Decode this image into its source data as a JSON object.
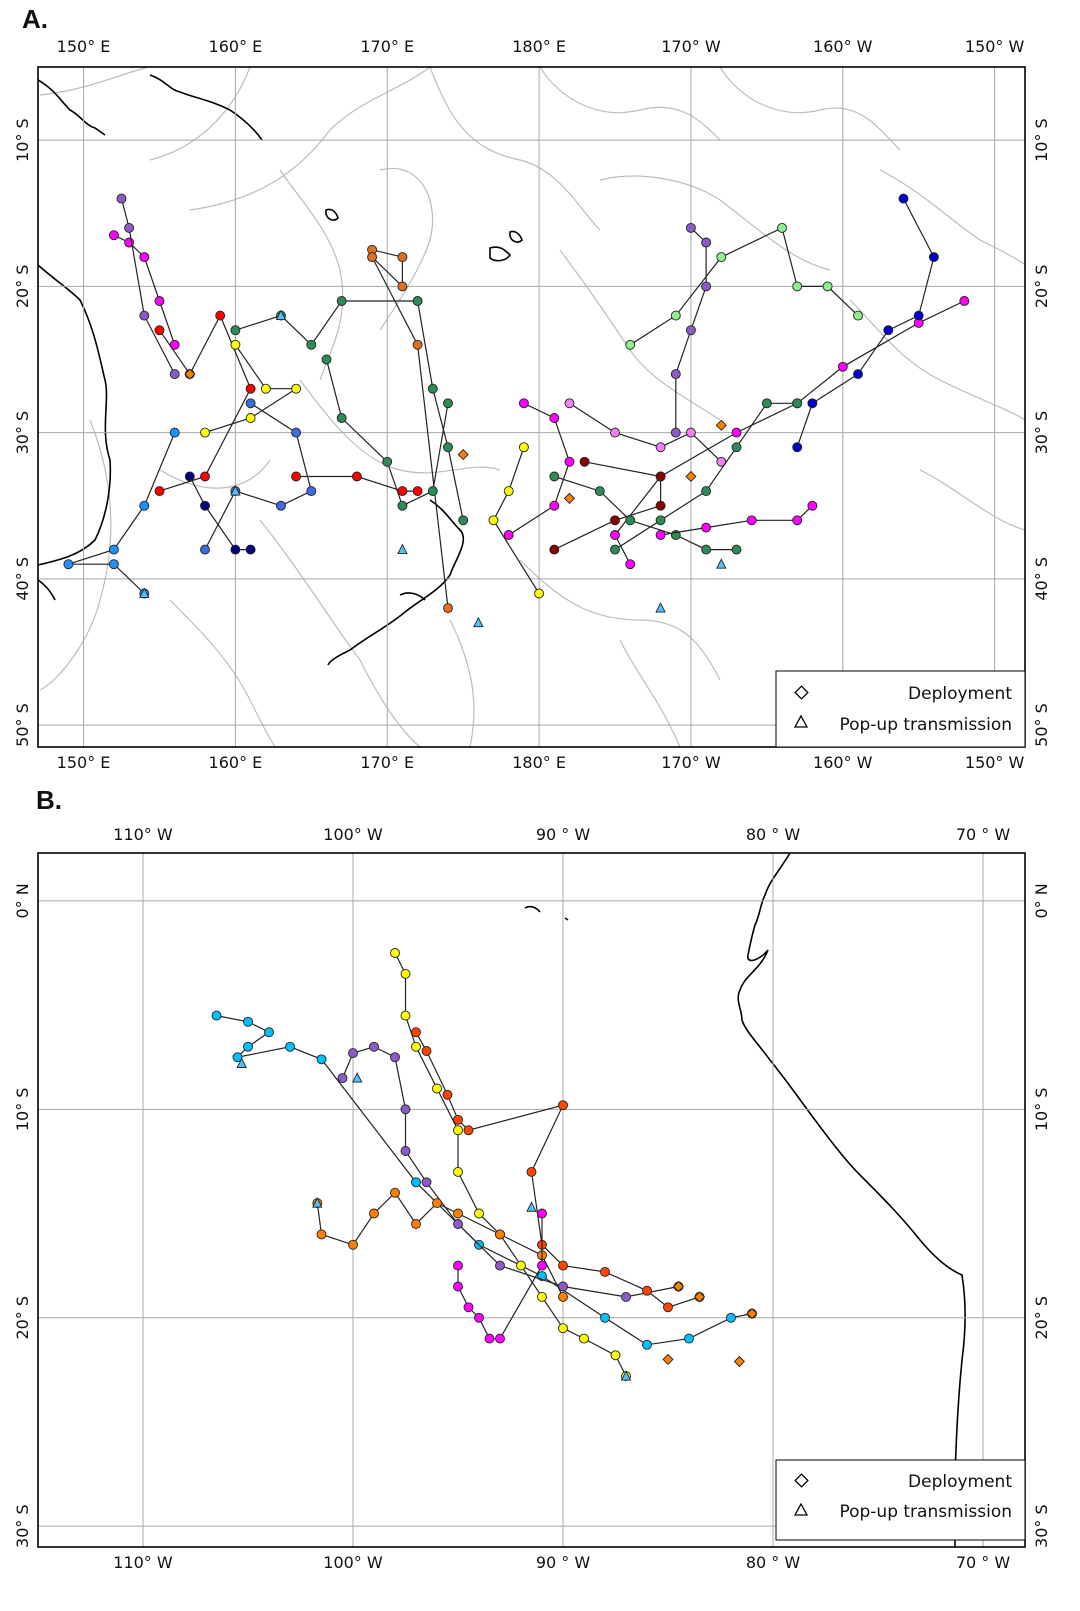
{
  "panels": [
    {
      "id": "A",
      "label": "A.",
      "lon_labels": [
        "150° E",
        "160° E",
        "170° E",
        "180° E",
        "170° W",
        "160° W",
        "150° W"
      ],
      "lon_values": [
        150,
        160,
        170,
        180,
        190,
        200,
        210
      ],
      "lat_labels": [
        "10° S",
        "20° S",
        "30° S",
        "40° S",
        "50° S"
      ],
      "lat_values": [
        -10,
        -20,
        -30,
        -40,
        -50
      ],
      "lon_range": [
        147,
        212
      ],
      "lat_range": [
        -51.5,
        -5
      ],
      "legend": {
        "deployment": "Deployment",
        "popup": "Pop-up transmission"
      },
      "tracks": [
        {
          "color": "#ff00ff",
          "points": [
            [
              152,
              -16.5
            ],
            [
              153,
              -17
            ],
            [
              154,
              -18
            ],
            [
              155,
              -21
            ],
            [
              156,
              -24
            ]
          ]
        },
        {
          "color": "#8b5cc7",
          "points": [
            [
              152.5,
              -14
            ],
            [
              153,
              -16
            ],
            [
              154,
              -22
            ],
            [
              156,
              -26
            ]
          ]
        },
        {
          "color": "#ff0000",
          "points": [
            [
              155,
              -23
            ],
            [
              157,
              -26
            ],
            [
              159,
              -22
            ],
            [
              161,
              -27
            ],
            [
              158,
              -33
            ],
            [
              155,
              -34
            ]
          ]
        },
        {
          "color": "#1e90ff",
          "points": [
            [
              156,
              -30
            ],
            [
              154,
              -35
            ],
            [
              152,
              -38
            ],
            [
              149,
              -39
            ],
            [
              152,
              -39
            ],
            [
              154,
              -41
            ]
          ]
        },
        {
          "color": "#ffff00",
          "points": [
            [
              160,
              -24
            ],
            [
              162,
              -27
            ],
            [
              164,
              -27
            ],
            [
              161,
              -29
            ],
            [
              158,
              -30
            ]
          ]
        },
        {
          "color": "#2e8b57",
          "points": [
            [
              160,
              -23
            ],
            [
              163,
              -22
            ],
            [
              165,
              -24
            ],
            [
              167,
              -21
            ],
            [
              172,
              -21
            ],
            [
              173,
              -27
            ],
            [
              174,
              -31
            ],
            [
              175,
              -36
            ]
          ]
        },
        {
          "color": "#e07020",
          "points": [
            [
              169,
              -17.5
            ],
            [
              171,
              -18
            ],
            [
              171,
              -20
            ],
            [
              169,
              -18
            ],
            [
              172,
              -24
            ],
            [
              174,
              -42
            ]
          ]
        },
        {
          "color": "#2e8b57",
          "points": [
            [
              166,
              -25
            ],
            [
              167,
              -29
            ],
            [
              170,
              -32
            ],
            [
              171,
              -35
            ],
            [
              173,
              -34
            ],
            [
              174,
              -28
            ]
          ]
        },
        {
          "color": "#4169e1",
          "points": [
            [
              161,
              -28
            ],
            [
              164,
              -30
            ],
            [
              165,
              -34
            ],
            [
              163,
              -35
            ],
            [
              160,
              -34
            ],
            [
              158,
              -38
            ]
          ]
        },
        {
          "color": "#ff0000",
          "points": [
            [
              164,
              -33
            ],
            [
              168,
              -33
            ],
            [
              171,
              -34
            ],
            [
              172,
              -34
            ]
          ]
        },
        {
          "color": "#000080",
          "points": [
            [
              157,
              -33
            ],
            [
              158,
              -35
            ],
            [
              160,
              -38
            ],
            [
              161,
              -38
            ]
          ]
        },
        {
          "color": "#ff00ff",
          "points": [
            [
              208,
              -21
            ],
            [
              205,
              -22.5
            ],
            [
              200,
              -25.5
            ],
            [
              197,
              -28
            ],
            [
              193,
              -30
            ],
            [
              188,
              -33
            ],
            [
              185,
              -37
            ],
            [
              186,
              -39
            ]
          ]
        },
        {
          "color": "#0000cd",
          "points": [
            [
              204,
              -14
            ],
            [
              206,
              -18
            ],
            [
              205,
              -22
            ],
            [
              203,
              -23
            ],
            [
              201,
              -26
            ],
            [
              198,
              -28
            ],
            [
              197,
              -31
            ]
          ]
        },
        {
          "color": "#8b0000",
          "points": [
            [
              183,
              -32
            ],
            [
              188,
              -33
            ],
            [
              188,
              -35
            ],
            [
              185,
              -36
            ],
            [
              181,
              -38
            ]
          ]
        },
        {
          "color": "#2e8b57",
          "points": [
            [
              181,
              -33
            ],
            [
              184,
              -34
            ],
            [
              186,
              -36
            ],
            [
              189,
              -37
            ],
            [
              191,
              -38
            ],
            [
              193,
              -38
            ]
          ]
        },
        {
          "color": "#90ee90",
          "points": [
            [
              186,
              -24
            ],
            [
              189,
              -22
            ],
            [
              192,
              -18
            ],
            [
              196,
              -16
            ],
            [
              197,
              -20
            ],
            [
              199,
              -20
            ],
            [
              201,
              -22
            ]
          ]
        },
        {
          "color": "#ee82ee",
          "points": [
            [
              182,
              -28
            ],
            [
              185,
              -30
            ],
            [
              188,
              -31
            ],
            [
              190,
              -30
            ],
            [
              192,
              -32
            ]
          ]
        },
        {
          "color": "#8b5cc7",
          "points": [
            [
              190,
              -16
            ],
            [
              191,
              -17
            ],
            [
              191,
              -20
            ],
            [
              190,
              -23
            ],
            [
              189,
              -26
            ],
            [
              189,
              -30
            ]
          ]
        },
        {
          "color": "#ff00ff",
          "points": [
            [
              188,
              -37
            ],
            [
              191,
              -36.5
            ],
            [
              194,
              -36
            ],
            [
              197,
              -36
            ],
            [
              198,
              -35
            ]
          ]
        },
        {
          "color": "#2e8b57",
          "points": [
            [
              185,
              -38
            ],
            [
              188,
              -36
            ],
            [
              191,
              -34
            ],
            [
              193,
              -31
            ],
            [
              195,
              -28
            ],
            [
              197,
              -28
            ]
          ]
        },
        {
          "color": "#ffff00",
          "points": [
            [
              179,
              -31
            ],
            [
              178,
              -34
            ],
            [
              177,
              -36
            ],
            [
              180,
              -41
            ]
          ]
        },
        {
          "color": "#ff00ff",
          "points": [
            [
              179,
              -28
            ],
            [
              181,
              -29
            ],
            [
              182,
              -32
            ],
            [
              181,
              -35
            ],
            [
              178,
              -37
            ]
          ]
        }
      ],
      "deployments": [
        [
          175,
          -31.5
        ],
        [
          182,
          -34.5
        ],
        [
          190,
          -33
        ],
        [
          192,
          -29.5
        ],
        [
          157,
          -26
        ]
      ],
      "popups": [
        [
          154,
          -41
        ],
        [
          163,
          -22
        ],
        [
          176,
          -43
        ],
        [
          171,
          -38
        ],
        [
          192,
          -39
        ],
        [
          188,
          -42
        ],
        [
          160,
          -34
        ]
      ]
    },
    {
      "id": "B",
      "label": "B.",
      "lon_labels": [
        "110° W",
        "100° W",
        "90 ° W",
        "80 ° W",
        "70 ° W"
      ],
      "lon_values": [
        -110,
        -100,
        -90,
        -80,
        -70
      ],
      "lat_labels": [
        "0° N",
        "10° S",
        "20° S",
        "30° S"
      ],
      "lat_values": [
        0,
        -10,
        -20,
        -30
      ],
      "lon_range": [
        -115,
        -68
      ],
      "lat_range": [
        -31,
        2.3
      ],
      "legend": {
        "deployment": "Deployment",
        "popup": "Pop-up transmission"
      },
      "tracks": [
        {
          "color": "#00bfff",
          "points": [
            [
              -106.5,
              -5.5
            ],
            [
              -105,
              -5.8
            ],
            [
              -104,
              -6.3
            ],
            [
              -105,
              -7
            ],
            [
              -105.5,
              -7.5
            ],
            [
              -103,
              -7
            ],
            [
              -101.5,
              -7.6
            ],
            [
              -97,
              -13.5
            ],
            [
              -94,
              -16.5
            ],
            [
              -91,
              -18
            ],
            [
              -88,
              -20
            ],
            [
              -86,
              -21.3
            ],
            [
              -84,
              -21
            ],
            [
              -82,
              -20
            ],
            [
              -81,
              -19.8
            ]
          ]
        },
        {
          "color": "#ffff00",
          "points": [
            [
              -98,
              -2.5
            ],
            [
              -97.5,
              -3.5
            ],
            [
              -97.5,
              -5.5
            ],
            [
              -97,
              -7
            ],
            [
              -96,
              -9
            ],
            [
              -95,
              -11
            ],
            [
              -95,
              -13
            ],
            [
              -94,
              -15
            ],
            [
              -93,
              -16
            ],
            [
              -92,
              -17.5
            ],
            [
              -91,
              -19
            ],
            [
              -90,
              -20.5
            ],
            [
              -89,
              -21
            ],
            [
              -87.5,
              -21.8
            ],
            [
              -87,
              -22.8
            ]
          ]
        },
        {
          "color": "#8b5cc7",
          "points": [
            [
              -100.5,
              -8.5
            ],
            [
              -100,
              -7.3
            ],
            [
              -99,
              -7
            ],
            [
              -98,
              -7.5
            ],
            [
              -97.5,
              -10
            ],
            [
              -97.5,
              -12
            ],
            [
              -96.5,
              -13.5
            ],
            [
              -95,
              -15.5
            ],
            [
              -93,
              -17.5
            ],
            [
              -90,
              -18.5
            ],
            [
              -87,
              -19
            ],
            [
              -84.5,
              -18.5
            ]
          ]
        },
        {
          "color": "#ff4500",
          "points": [
            [
              -97,
              -6.3
            ],
            [
              -96.5,
              -7.2
            ],
            [
              -95.5,
              -9.3
            ],
            [
              -95,
              -10.5
            ],
            [
              -94.5,
              -11
            ],
            [
              -90,
              -9.8
            ],
            [
              -91.5,
              -13
            ],
            [
              -91,
              -16.5
            ],
            [
              -90,
              -17.5
            ],
            [
              -88,
              -17.8
            ],
            [
              -86,
              -18.7
            ],
            [
              -85,
              -19.5
            ],
            [
              -83.5,
              -19
            ]
          ]
        },
        {
          "color": "#ff7f00",
          "points": [
            [
              -101.7,
              -14.5
            ],
            [
              -101.5,
              -16
            ],
            [
              -100,
              -16.5
            ],
            [
              -99,
              -15
            ],
            [
              -98,
              -14
            ],
            [
              -97,
              -15.5
            ],
            [
              -96,
              -14.5
            ],
            [
              -95,
              -15
            ],
            [
              -93,
              -16
            ],
            [
              -91,
              -17
            ],
            [
              -90,
              -19
            ]
          ]
        },
        {
          "color": "#ff00ff",
          "points": [
            [
              -95,
              -17.5
            ],
            [
              -95,
              -18.5
            ],
            [
              -94.5,
              -19.5
            ],
            [
              -94,
              -20
            ],
            [
              -93.5,
              -21
            ],
            [
              -93,
              -21
            ],
            [
              -91,
              -17.5
            ],
            [
              -91,
              -15
            ]
          ]
        }
      ],
      "deployments": [
        [
          -81,
          -19.8
        ],
        [
          -84.5,
          -18.5
        ],
        [
          -83.5,
          -19
        ],
        [
          -85,
          -22
        ],
        [
          -81.6,
          -22.1
        ]
      ],
      "popups": [
        [
          -101.7,
          -14.5
        ],
        [
          -99.8,
          -8.5
        ],
        [
          -105.3,
          -7.8
        ],
        [
          -87,
          -22.8
        ],
        [
          -91.5,
          -14.7
        ]
      ]
    }
  ]
}
